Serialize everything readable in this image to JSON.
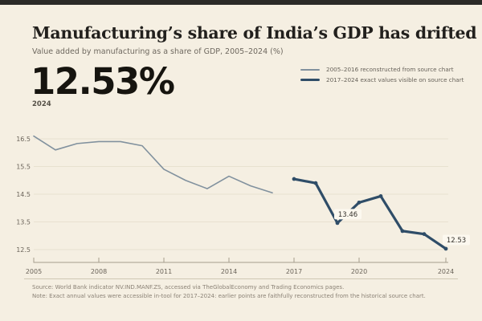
{
  "page": {
    "background": "#f5efe2",
    "topbar_color": "#2b2a27"
  },
  "header": {
    "title": "Manufacturing’s share of India’s GDP has drifted",
    "subtitle": "Value added by manufacturing as a share of GDP, 2005–2024 (%)",
    "big_number": "12.53%",
    "big_number_caption": "2024"
  },
  "legend": {
    "position": "top-right",
    "items": [
      {
        "label": "2005–2016 reconstructed from source chart",
        "color": "#81919e",
        "thickness": 2
      },
      {
        "label": "2017–2024 exact values visible on source chart",
        "color": "#2f4d68",
        "thickness": 3
      }
    ]
  },
  "chart_data": {
    "type": "line",
    "title": "Manufacturing’s share of India’s GDP has drifted",
    "subtitle": "Value added by manufacturing as a share of GDP, 2005–2024 (%)",
    "xlabel": "",
    "ylabel": "",
    "x_ticks": [
      2005,
      2008,
      2011,
      2014,
      2017,
      2020,
      2024
    ],
    "y_ticks": [
      16.5,
      15.5,
      14.5,
      13.5,
      12.5
    ],
    "xlim": [
      2005,
      2024
    ],
    "ylim": [
      12.2,
      16.85
    ],
    "grid": true,
    "series": [
      {
        "name": "2005–2016 reconstructed from source chart",
        "color": "#81919e",
        "stroke_width": 1.6,
        "markers": false,
        "x": [
          2005,
          2006,
          2007,
          2008,
          2009,
          2010,
          2011,
          2012,
          2013,
          2014,
          2015,
          2016
        ],
        "values": [
          16.6,
          16.1,
          16.33,
          16.4,
          16.4,
          16.25,
          15.4,
          15.0,
          14.7,
          15.15,
          14.8,
          14.55
        ]
      },
      {
        "name": "2017–2024 exact values visible on source chart",
        "color": "#2f4d68",
        "stroke_width": 3.2,
        "markers": true,
        "x": [
          2017,
          2018,
          2019,
          2020,
          2021,
          2022,
          2023,
          2024
        ],
        "values": [
          15.05,
          14.9,
          13.46,
          14.2,
          14.43,
          13.17,
          13.06,
          12.53
        ]
      }
    ],
    "annotations": [
      {
        "text": "13.46",
        "year": 2019,
        "value": 13.46
      },
      {
        "text": "12.53",
        "year": 2024,
        "value": 12.53
      }
    ],
    "colors": {
      "gridline": "#e8e1d0",
      "axis": "#a59d8c",
      "tick_label": "#6b645a",
      "annotation_bg": "#fcf8ef",
      "annotation_text": "#35322c"
    }
  },
  "footer": {
    "source": "Source: World Bank indicator NV.IND.MANF.ZS, accessed via TheGlobalEconomy and Trading Economics pages.",
    "note": "Note: Exact annual values were accessible in-tool for 2017–2024: earlier points are faithfully reconstructed from the historical source chart."
  }
}
